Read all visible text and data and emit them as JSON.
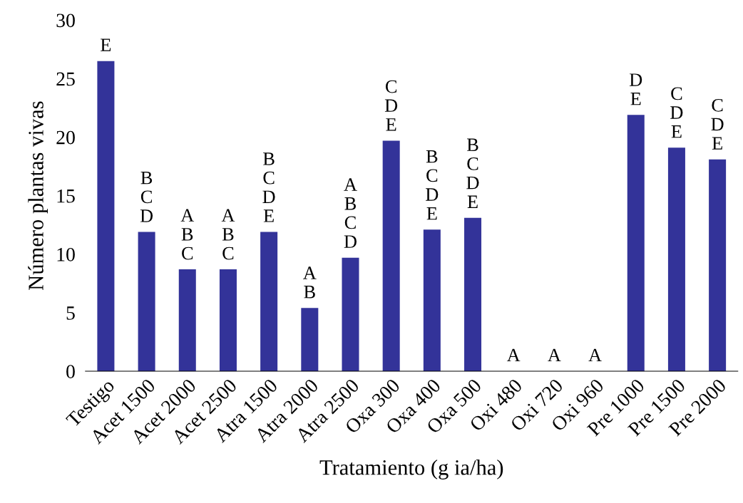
{
  "chart_data": {
    "type": "bar",
    "xlabel": "Tratamiento (g ia/ha)",
    "ylabel": "Número plantas vivas",
    "categories": [
      "Testigo",
      "Acet 1500",
      "Acet 2000",
      "Acet 2500",
      "Atra 1500",
      "Atra 2000",
      "Atra 2500",
      "Oxa 300",
      "Oxa 400",
      "Oxa 500",
      "Oxi 480",
      "Oxi 720",
      "Oxi 960",
      "Pre 1000",
      "Pre 1500",
      "Pre 2000"
    ],
    "values": [
      26.5,
      11.9,
      8.7,
      8.7,
      11.9,
      5.4,
      9.7,
      19.7,
      12.1,
      13.1,
      0,
      0,
      0,
      21.9,
      19.1,
      18.1
    ],
    "color": "#333399",
    "ylim": [
      0,
      30
    ],
    "yticks": [
      0,
      5,
      10,
      15,
      20,
      25,
      30
    ],
    "grid": false,
    "annotations": [
      {
        "text": "E",
        "x": "Testigo",
        "y": 26.5
      },
      {
        "text": "B\nC\nD",
        "x": "Acet 1500",
        "y": 11.9
      },
      {
        "text": "A\nB\nC",
        "x": "Acet 2000",
        "y": 8.7
      },
      {
        "text": "A\nB\nC",
        "x": "Acet 2500",
        "y": 8.7
      },
      {
        "text": "B\nC\nD\nE",
        "x": "Atra 1500",
        "y": 11.9
      },
      {
        "text": "A\nB",
        "x": "Atra 2000",
        "y": 5.4
      },
      {
        "text": "A\nB\nC\nD",
        "x": "Atra 2500",
        "y": 9.7
      },
      {
        "text": "C\nD\nE",
        "x": "Oxa 300",
        "y": 19.7
      },
      {
        "text": "B\nC\nD\nE",
        "x": "Oxa 400",
        "y": 12.1
      },
      {
        "text": "B\nC\nD\nE",
        "x": "Oxa 500",
        "y": 13.1
      },
      {
        "text": "A",
        "x": "Oxi 480",
        "y": 0
      },
      {
        "text": "A",
        "x": "Oxi 720",
        "y": 0
      },
      {
        "text": "A",
        "x": "Oxi 960",
        "y": 0
      },
      {
        "text": "D\nE",
        "x": "Pre 1000",
        "y": 21.9
      },
      {
        "text": "C\nD\nE",
        "x": "Pre 1500",
        "y": 19.1
      },
      {
        "text": "C\nD\nE",
        "x": "Pre 2000",
        "y": 18.1
      }
    ]
  }
}
